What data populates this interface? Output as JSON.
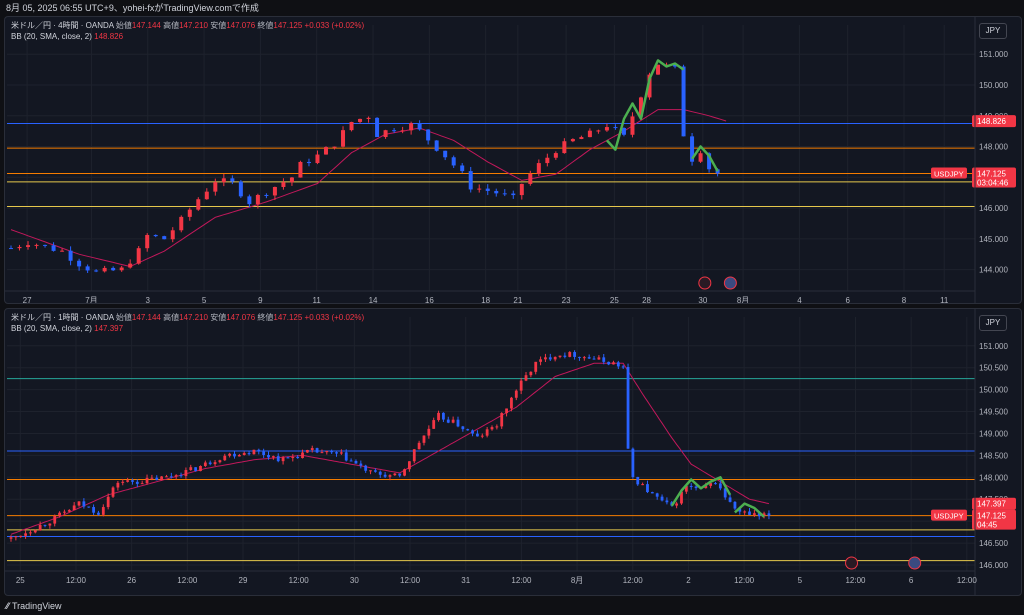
{
  "header": {
    "text": "8月 05, 2025 06:55 UTC+9、yohei-fxがTradingView.comで作成"
  },
  "footer": {
    "brand": "TradingView"
  },
  "colors": {
    "up": "#f23645",
    "down": "#2962ff",
    "bb_basis": "#c2185b",
    "highlight": "#4caf50",
    "level_blue": "#2962ff",
    "level_orange": "#f57c00",
    "level_yellow": "#e6c84c",
    "level_green": "#26a69a"
  },
  "panels": [
    {
      "symbol_line": {
        "title": "米ドル／円 · 4時間 · OANDA",
        "open_label": "始値",
        "open": "147.144",
        "high_label": "高値",
        "high": "147.210",
        "low_label": "安値",
        "low": "147.076",
        "close_label": "終値",
        "close": "147.125",
        "change": "+0.033 (+0.02%)"
      },
      "indicator_line": {
        "label": "BB (20, SMA, close, 2)",
        "value": "148.826"
      },
      "currency_button": "JPY"
    },
    {
      "symbol_line": {
        "title": "米ドル／円 · 1時間 · OANDA",
        "open_label": "始値",
        "open": "147.144",
        "high_label": "高値",
        "high": "147.210",
        "low_label": "安値",
        "low": "147.076",
        "close_label": "終値",
        "close": "147.125",
        "change": "+0.033 (+0.02%)"
      },
      "indicator_line": {
        "label": "BB (20, SMA, close, 2)",
        "value": "147.397"
      },
      "currency_button": "JPY"
    }
  ],
  "chart_data": [
    {
      "type": "candlestick",
      "title": "米ドル／円 · 4時間 · OANDA",
      "timeframe": "4時間",
      "ylim": [
        143.5,
        151.3
      ],
      "y_ticks": [
        "144.000",
        "145.000",
        "146.000",
        "147.000",
        "148.000",
        "149.000",
        "150.000",
        "151.000"
      ],
      "x_ticks": [
        "27",
        "7月",
        "3",
        "5",
        "9",
        "11",
        "14",
        "16",
        "18",
        "21",
        "23",
        "25",
        "28",
        "30",
        "8月",
        "4",
        "6",
        "8",
        "11"
      ],
      "price_path": [
        [
          0,
          144.7
        ],
        [
          2,
          144.9
        ],
        [
          6,
          144.6
        ],
        [
          8,
          144.2
        ],
        [
          10,
          143.9
        ],
        [
          13,
          144.0
        ],
        [
          15,
          144.6
        ],
        [
          16,
          145.1
        ],
        [
          18,
          145.0
        ],
        [
          20,
          145.6
        ],
        [
          22,
          146.3
        ],
        [
          24,
          146.9
        ],
        [
          26,
          146.8
        ],
        [
          28,
          146.2
        ],
        [
          31,
          146.7
        ],
        [
          33,
          147.0
        ],
        [
          34,
          147.4
        ],
        [
          36,
          147.7
        ],
        [
          38,
          148.1
        ],
        [
          40,
          148.8
        ],
        [
          42,
          149.0
        ],
        [
          43,
          148.4
        ],
        [
          45,
          148.6
        ],
        [
          47,
          148.7
        ],
        [
          48,
          148.5
        ],
        [
          51,
          147.7
        ],
        [
          53,
          147.1
        ],
        [
          54,
          146.7
        ],
        [
          57,
          146.5
        ],
        [
          59,
          146.3
        ],
        [
          60,
          146.8
        ],
        [
          62,
          147.4
        ],
        [
          64,
          147.9
        ],
        [
          66,
          148.2
        ],
        [
          68,
          148.4
        ],
        [
          70,
          148.7
        ],
        [
          71,
          148.5
        ],
        [
          72,
          148.3
        ],
        [
          73,
          149.0
        ],
        [
          75,
          150.4
        ],
        [
          76,
          150.7
        ],
        [
          78,
          150.5
        ],
        [
          79,
          148.4
        ],
        [
          80,
          147.6
        ],
        [
          81,
          147.9
        ],
        [
          82,
          147.3
        ],
        [
          83,
          147.125
        ]
      ],
      "bb_basis": [
        [
          0,
          145.3
        ],
        [
          8,
          144.5
        ],
        [
          14,
          144.1
        ],
        [
          18,
          144.6
        ],
        [
          24,
          145.7
        ],
        [
          30,
          146.2
        ],
        [
          36,
          146.8
        ],
        [
          40,
          147.8
        ],
        [
          44,
          148.4
        ],
        [
          48,
          148.6
        ],
        [
          52,
          148.2
        ],
        [
          56,
          147.5
        ],
        [
          60,
          146.9
        ],
        [
          64,
          147.1
        ],
        [
          68,
          147.9
        ],
        [
          72,
          148.5
        ],
        [
          76,
          149.2
        ],
        [
          79,
          149.2
        ],
        [
          82,
          149.0
        ],
        [
          84,
          148.83
        ]
      ],
      "highlight_path": [
        [
          70,
          148.2
        ],
        [
          71,
          147.9
        ],
        [
          72,
          148.9
        ],
        [
          73,
          149.4
        ],
        [
          74,
          148.9
        ],
        [
          75,
          150.2
        ],
        [
          76,
          150.8
        ],
        [
          77,
          150.6
        ],
        [
          78,
          150.7
        ],
        [
          79,
          150.5
        ]
      ],
      "highlight_path_2": [
        [
          80,
          147.6
        ],
        [
          81,
          148.0
        ],
        [
          82,
          147.7
        ],
        [
          83,
          147.2
        ]
      ],
      "horizontal_levels": [
        {
          "price": 148.75,
          "color": "level_blue"
        },
        {
          "price": 147.95,
          "color": "level_orange"
        },
        {
          "price": 147.125,
          "color": "level_orange"
        },
        {
          "price": 146.85,
          "color": "level_yellow"
        },
        {
          "price": 146.05,
          "color": "level_yellow"
        }
      ],
      "price_tags": [
        {
          "label": "148.826",
          "price": 148.826,
          "color": "#f23645"
        },
        {
          "label": "USDJPY",
          "price": 147.125,
          "value": "147.125",
          "sub": "03:04:46",
          "color": "#f23645"
        }
      ]
    },
    {
      "type": "candlestick",
      "title": "米ドル／円 · 1時間 · OANDA",
      "timeframe": "1時間",
      "ylim": [
        146.0,
        151.2
      ],
      "y_ticks": [
        "146.000",
        "146.500",
        "147.000",
        "147.500",
        "148.000",
        "148.500",
        "149.000",
        "149.500",
        "150.000",
        "150.500",
        "151.000"
      ],
      "x_ticks": [
        "25",
        "12:00",
        "26",
        "12:00",
        "29",
        "12:00",
        "30",
        "12:00",
        "31",
        "12:00",
        "8月",
        "12:00",
        "2",
        "12:00",
        "5",
        "12:00",
        "6",
        "12:00"
      ],
      "price_path": [
        [
          0,
          146.6
        ],
        [
          8,
          147.0
        ],
        [
          14,
          147.4
        ],
        [
          18,
          147.2
        ],
        [
          22,
          147.9
        ],
        [
          26,
          147.9
        ],
        [
          32,
          148.0
        ],
        [
          38,
          148.2
        ],
        [
          44,
          148.5
        ],
        [
          50,
          148.6
        ],
        [
          56,
          148.4
        ],
        [
          62,
          148.6
        ],
        [
          68,
          148.5
        ],
        [
          74,
          148.1
        ],
        [
          80,
          148.0
        ],
        [
          84,
          148.8
        ],
        [
          88,
          149.4
        ],
        [
          92,
          149.2
        ],
        [
          96,
          148.9
        ],
        [
          100,
          149.2
        ],
        [
          104,
          150.0
        ],
        [
          108,
          150.6
        ],
        [
          112,
          150.8
        ],
        [
          116,
          150.8
        ],
        [
          120,
          150.7
        ],
        [
          124,
          150.6
        ],
        [
          126,
          150.5
        ],
        [
          127,
          148.6
        ],
        [
          128,
          148.0
        ],
        [
          132,
          147.6
        ],
        [
          136,
          147.3
        ],
        [
          139,
          147.8
        ],
        [
          142,
          147.7
        ],
        [
          145,
          147.9
        ],
        [
          148,
          147.4
        ],
        [
          150,
          147.2
        ],
        [
          154,
          147.1
        ],
        [
          156,
          147.125
        ]
      ],
      "bb_basis": [
        [
          0,
          146.7
        ],
        [
          10,
          147.1
        ],
        [
          20,
          147.6
        ],
        [
          30,
          147.9
        ],
        [
          40,
          148.2
        ],
        [
          50,
          148.4
        ],
        [
          60,
          148.5
        ],
        [
          70,
          148.3
        ],
        [
          80,
          148.1
        ],
        [
          88,
          148.6
        ],
        [
          96,
          149.1
        ],
        [
          104,
          149.6
        ],
        [
          112,
          150.3
        ],
        [
          120,
          150.6
        ],
        [
          126,
          150.6
        ],
        [
          130,
          149.9
        ],
        [
          136,
          148.9
        ],
        [
          140,
          148.3
        ],
        [
          146,
          147.9
        ],
        [
          152,
          147.5
        ],
        [
          156,
          147.4
        ]
      ],
      "highlight_path": [
        [
          136,
          147.35
        ],
        [
          138,
          147.7
        ],
        [
          140,
          147.95
        ],
        [
          142,
          147.75
        ],
        [
          144,
          147.9
        ],
        [
          146,
          148.0
        ],
        [
          148,
          147.6
        ]
      ],
      "highlight_path_2": [
        [
          149,
          147.2
        ],
        [
          151,
          147.4
        ],
        [
          153,
          147.3
        ],
        [
          155,
          147.1
        ]
      ],
      "horizontal_levels": [
        {
          "price": 150.25,
          "color": "level_green"
        },
        {
          "price": 148.6,
          "color": "level_blue"
        },
        {
          "price": 147.95,
          "color": "level_orange"
        },
        {
          "price": 147.125,
          "color": "level_orange"
        },
        {
          "price": 146.8,
          "color": "level_yellow"
        },
        {
          "price": 146.65,
          "color": "level_blue"
        },
        {
          "price": 146.1,
          "color": "level_yellow"
        }
      ],
      "price_tags": [
        {
          "label": "147.397",
          "price": 147.397,
          "color": "#f23645"
        },
        {
          "label": "USDJPY",
          "price": 147.125,
          "value": "147.125",
          "sub": "04:45",
          "color": "#f23645"
        }
      ]
    }
  ]
}
